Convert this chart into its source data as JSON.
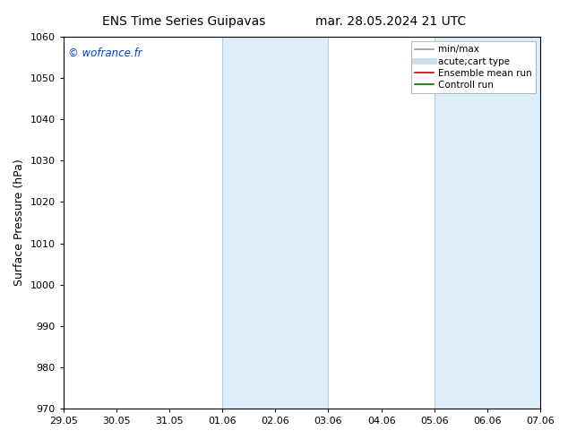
{
  "title_left": "ENS Time Series Guipavas",
  "title_right": "mar. 28.05.2024 21 UTC",
  "ylabel": "Surface Pressure (hPa)",
  "ylim": [
    970,
    1060
  ],
  "yticks": [
    970,
    980,
    990,
    1000,
    1010,
    1020,
    1030,
    1040,
    1050,
    1060
  ],
  "xtick_labels": [
    "29.05",
    "30.05",
    "31.05",
    "01.06",
    "02.06",
    "03.06",
    "04.06",
    "05.06",
    "06.06",
    "07.06"
  ],
  "xtick_positions": [
    0,
    1,
    2,
    3,
    4,
    5,
    6,
    7,
    8,
    9
  ],
  "shaded_regions": [
    {
      "xmin": 3,
      "xmax": 5,
      "color": "#dceef9"
    },
    {
      "xmin": 7,
      "xmax": 9,
      "color": "#dceef9"
    }
  ],
  "shaded_border_color": "#b0cfe0",
  "watermark": "© wofrance.fr",
  "watermark_color": "#0044cc",
  "legend_items": [
    {
      "label": "min/max",
      "color": "#999999",
      "lw": 1.2,
      "style": "solid"
    },
    {
      "label": "acute;cart type",
      "color": "#ccdded",
      "lw": 5,
      "style": "solid"
    },
    {
      "label": "Ensemble mean run",
      "color": "#cc0000",
      "lw": 1.2,
      "style": "solid"
    },
    {
      "label": "Controll run",
      "color": "#006600",
      "lw": 1.2,
      "style": "solid"
    }
  ],
  "bg_color": "#ffffff",
  "plot_bg_color": "#ffffff",
  "tick_label_fontsize": 8,
  "title_fontsize": 10,
  "ylabel_fontsize": 9,
  "legend_fontsize": 7.5
}
